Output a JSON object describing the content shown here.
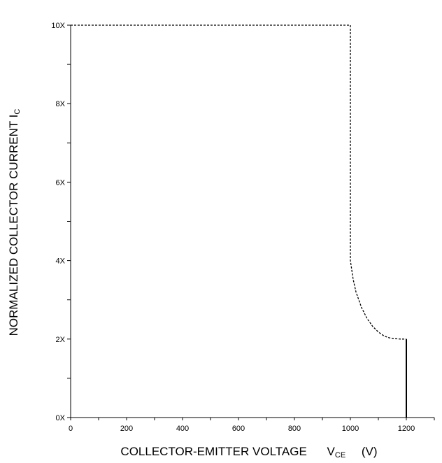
{
  "chart_data": {
    "type": "line",
    "xlabel": "COLLECTOR-EMITTER VOLTAGE",
    "xlabel_symbol": "V",
    "xlabel_subscript": "CE",
    "xlabel_unit": "(V)",
    "ylabel": "NORMALIZED COLLECTOR CURRENT I",
    "ylabel_subscript": "C",
    "xlim": [
      0,
      1300
    ],
    "ylim": [
      0,
      10
    ],
    "x_ticks": [
      0,
      200,
      400,
      600,
      800,
      1000,
      1200
    ],
    "x_tick_labels": [
      "0",
      "200",
      "400",
      "600",
      "800",
      "1000",
      "1200"
    ],
    "y_ticks": [
      0,
      2,
      4,
      6,
      8,
      10
    ],
    "y_tick_labels": [
      "0X",
      "2X",
      "4X",
      "6X",
      "8X",
      "10X"
    ],
    "grid": false,
    "series": [
      {
        "style": "dashed",
        "color": "#000000",
        "points": [
          [
            0,
            10
          ],
          [
            1000,
            10
          ],
          [
            1000,
            4
          ],
          [
            1010,
            3.52
          ],
          [
            1020,
            3.2
          ],
          [
            1040,
            2.8
          ],
          [
            1060,
            2.52
          ],
          [
            1080,
            2.32
          ],
          [
            1100,
            2.18
          ],
          [
            1120,
            2.08
          ],
          [
            1140,
            2.03
          ],
          [
            1160,
            2.01
          ],
          [
            1180,
            2.0
          ],
          [
            1200,
            2.0
          ]
        ]
      },
      {
        "style": "solid",
        "color": "#000000",
        "points": [
          [
            1200,
            2.0
          ],
          [
            1200,
            0
          ]
        ]
      }
    ]
  }
}
